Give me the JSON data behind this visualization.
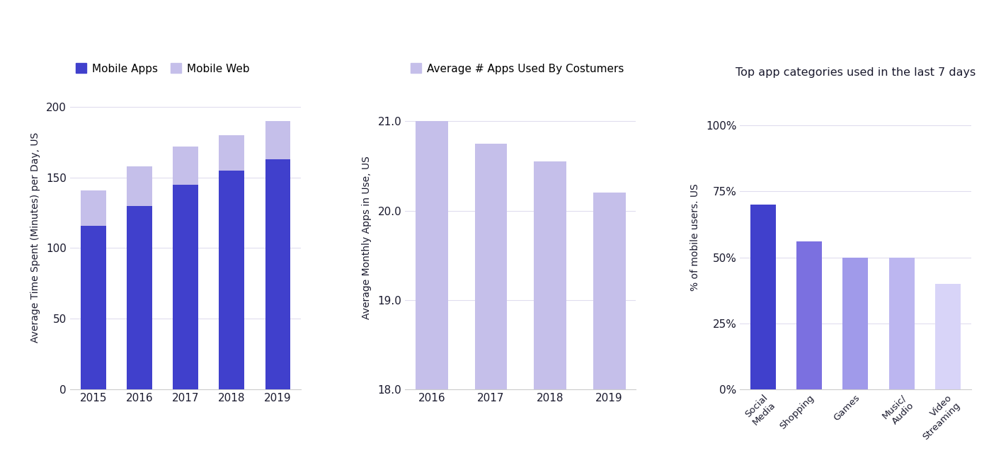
{
  "chart1": {
    "years": [
      "2015",
      "2016",
      "2017",
      "2018",
      "2019"
    ],
    "mobile_apps": [
      116,
      130,
      145,
      155,
      163
    ],
    "mobile_web": [
      25,
      28,
      27,
      25,
      27
    ],
    "color_apps": "#4040CC",
    "color_web": "#C5BFEA",
    "ylabel": "Average Time Spent (Minutes) per Day, US",
    "yticks": [
      0,
      50,
      100,
      150,
      200
    ],
    "ylim": [
      0,
      215
    ],
    "legend_apps": "Mobile Apps",
    "legend_web": "Mobile Web"
  },
  "chart2": {
    "years": [
      "2016",
      "2017",
      "2018",
      "2019"
    ],
    "values": [
      21.0,
      20.75,
      20.55,
      20.2
    ],
    "color": "#C5BFEA",
    "ylabel": "Average Monthly Apps in Use, US",
    "ylim": [
      18.0,
      21.4
    ],
    "yticks": [
      18.0,
      19.0,
      20.0,
      21.0
    ],
    "legend_label": "Average # Apps Used By Costumers"
  },
  "chart3": {
    "categories": [
      "Social\nMedia",
      "Shopping",
      "Games",
      "Music/\nAudio",
      "Video\nStreaming"
    ],
    "values": [
      0.7,
      0.56,
      0.5,
      0.5,
      0.4
    ],
    "colors": [
      "#4040CC",
      "#7B70E0",
      "#A09AEA",
      "#BCB6F0",
      "#D8D4F8"
    ],
    "ylabel": "% of mobile users. US",
    "title": "Top app categories used in the last 7 days",
    "yticks": [
      0.0,
      0.25,
      0.5,
      0.75,
      1.0
    ],
    "ylim": [
      0.0,
      1.15
    ],
    "yticklabels": [
      "0%",
      "25%",
      "50%",
      "75%",
      "100%"
    ]
  },
  "background_color": "#FFFFFF",
  "grid_color": "#E0DDEE",
  "text_color": "#1a1a2e"
}
